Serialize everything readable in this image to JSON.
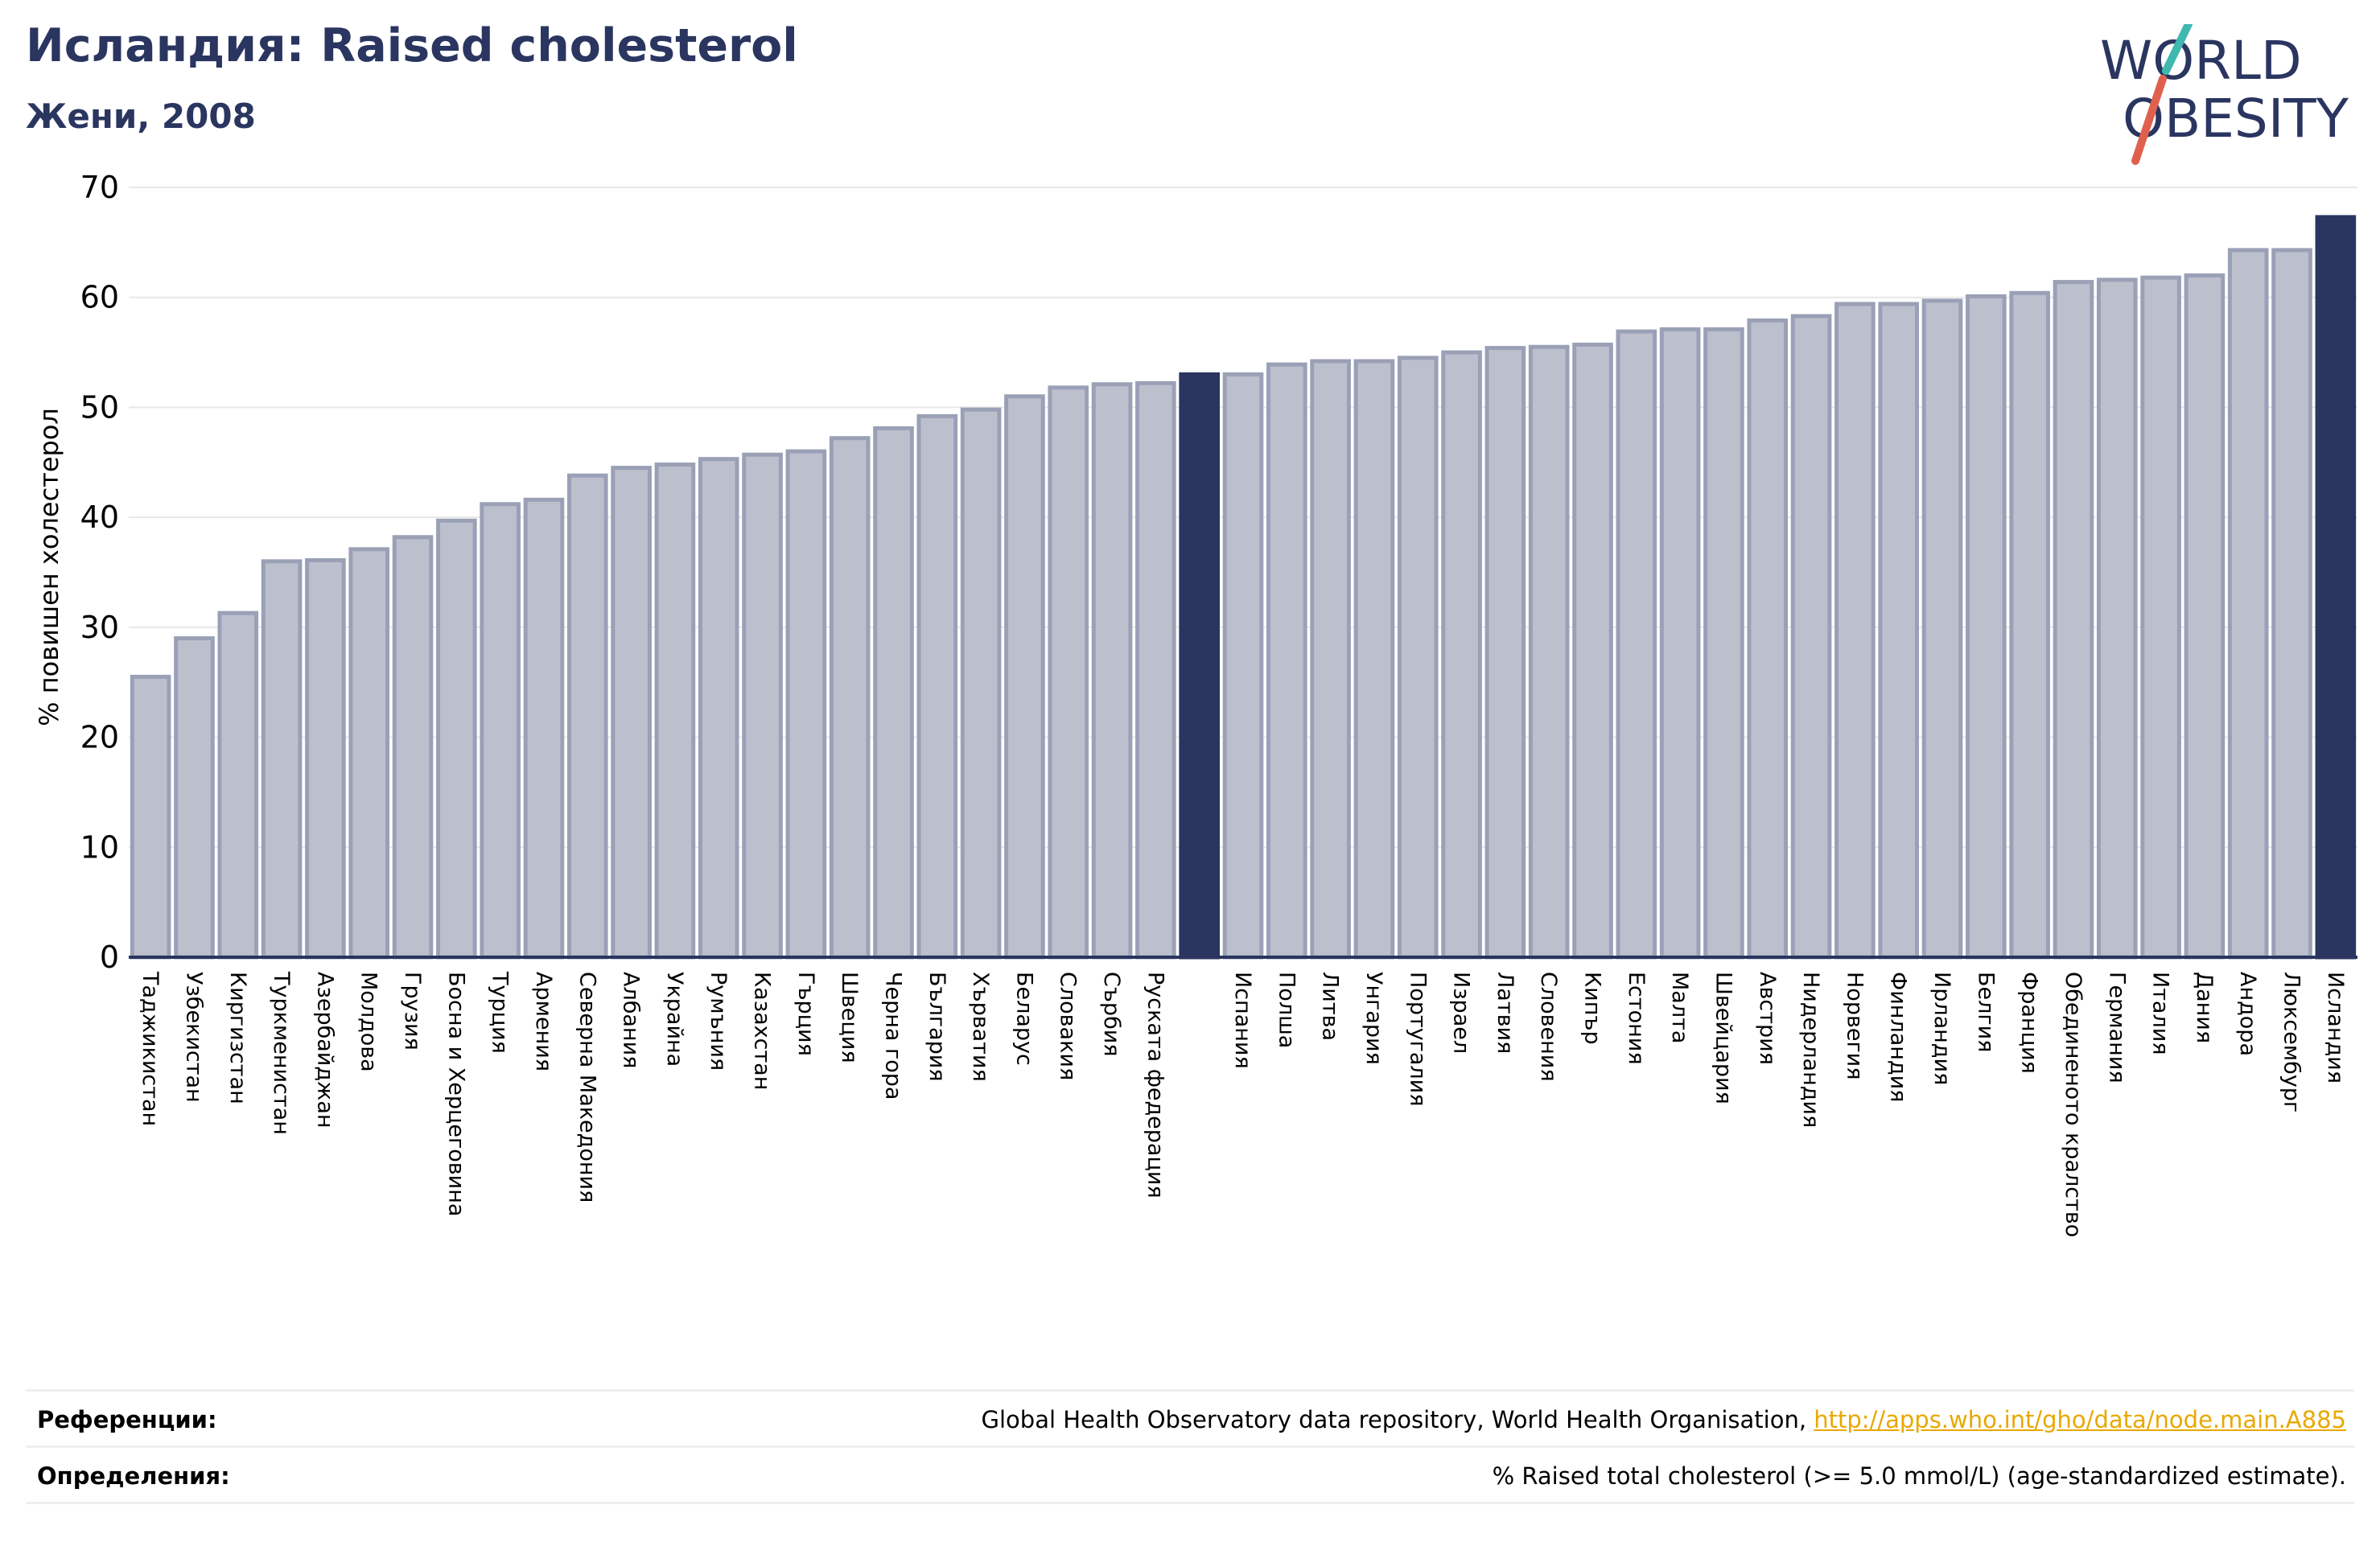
{
  "header": {
    "title": "Исландия: Raised cholesterol",
    "subtitle": "Жени, 2008"
  },
  "logo": {
    "line1": "WORLD",
    "line2": "OBESITY",
    "text_color": "#2a3560",
    "slash_top_color": "#3fb8b0",
    "slash_bottom_color": "#e0604e"
  },
  "colors": {
    "bar_fill": "#bcc0cd",
    "bar_stroke": "#9aa0b6",
    "highlight": "#2a3560",
    "grid": "#e8e8e8",
    "axis": "#2a3560"
  },
  "chart_data": {
    "type": "bar",
    "ylabel": "% повишен холестерол",
    "ylim": [
      0,
      70
    ],
    "yticks": [
      0,
      10,
      20,
      30,
      40,
      50,
      60,
      70
    ],
    "grid": true,
    "categories": [
      "Таджикистан",
      "Узбекистан",
      "Киргизстан",
      "Туркменистан",
      "Азербайджан",
      "Молдова",
      "Грузия",
      "Босна и Херцеговина",
      "Турция",
      "Армения",
      "Северна Македония",
      "Албания",
      "Украйна",
      "Румъния",
      "Казахстан",
      "Гърция",
      "Швеция",
      "Черна гора",
      "България",
      "Хърватия",
      "Беларус",
      "Словакия",
      "Сърбия",
      "Руската федерация",
      "",
      "Испания",
      "Полша",
      "Литва",
      "Унгария",
      "Португалия",
      "Израел",
      "Латвия",
      "Словения",
      "Кипър",
      "Естония",
      "Малта",
      "Швейцария",
      "Австрия",
      "Нидерландия",
      "Норвегия",
      "Финландия",
      "Ирландия",
      "Белгия",
      "Франция",
      "Обединеното кралство",
      "Германия",
      "Италия",
      "Дания",
      "Андора",
      "Люксембург",
      "Исландия"
    ],
    "values": [
      25.5,
      29.0,
      31.3,
      36.0,
      36.1,
      37.1,
      38.2,
      39.7,
      41.2,
      41.6,
      43.8,
      44.5,
      44.8,
      45.3,
      45.7,
      46.0,
      47.2,
      48.1,
      49.2,
      49.8,
      51.0,
      51.8,
      52.1,
      52.2,
      53.0,
      53.0,
      53.9,
      54.2,
      54.2,
      54.5,
      55.0,
      55.4,
      55.5,
      55.7,
      56.9,
      57.1,
      57.1,
      57.9,
      58.3,
      59.4,
      59.4,
      59.7,
      60.1,
      60.4,
      61.4,
      61.6,
      61.8,
      62.0,
      64.3,
      64.3,
      67.3
    ],
    "highlighted": [
      24,
      50
    ]
  },
  "footer": {
    "references_label": "Референции:",
    "references_text": "Global Health Observatory data repository, World Health Organisation,",
    "references_link": "http://apps.who.int/gho/data/node.main.A885",
    "definitions_label": "Определения:",
    "definitions_text": "% Raised total cholesterol (>= 5.0 mmol/L) (age-standardized estimate)."
  }
}
